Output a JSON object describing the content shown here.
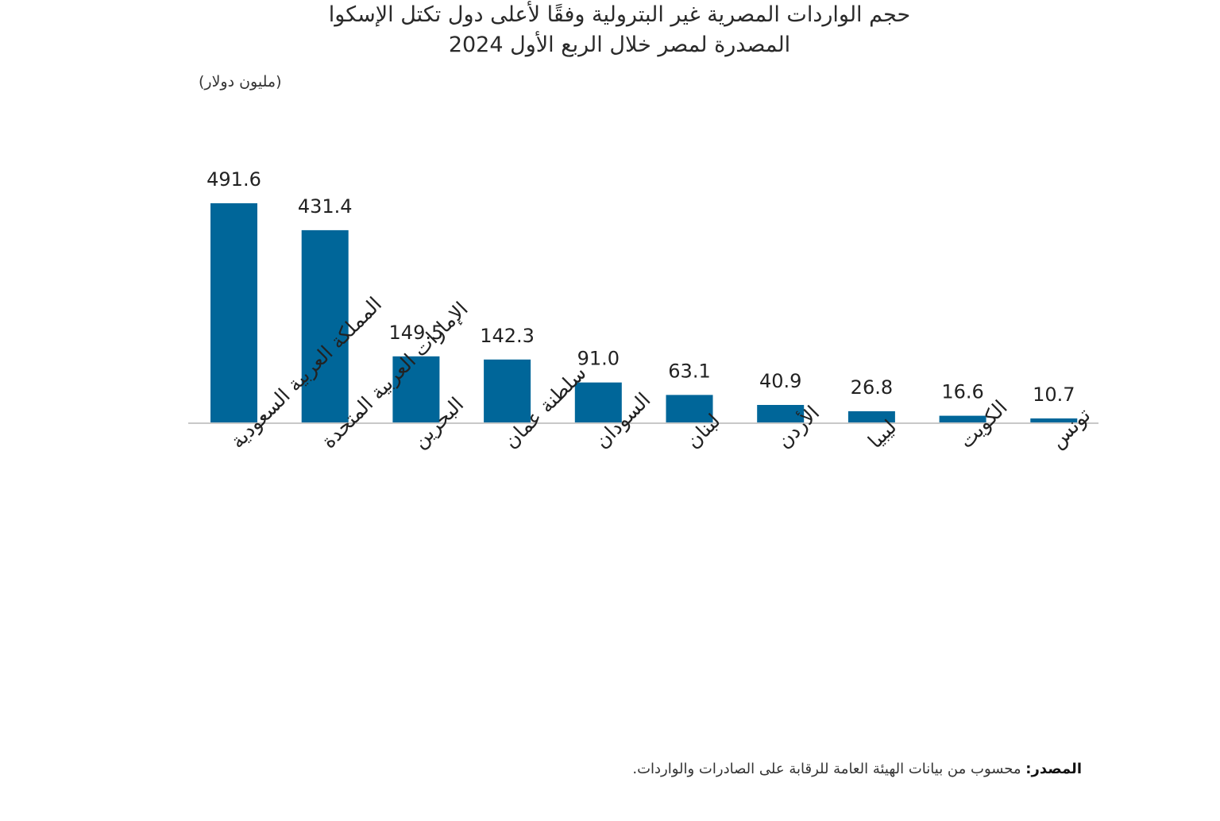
{
  "chart_data": {
    "type": "bar",
    "title_line1": "حجم الواردات المصرية غير البترولية وفقًا لأعلى دول تكتل الإسكوا",
    "title_line2": "المصدرة لمصر خلال الربع الأول 2024",
    "unit_label": "(مليون دولار)",
    "categories": [
      "المملكة العربية السعودية",
      "الإمارات العربية المتحدة",
      "البحرين",
      "سلطنة عمان",
      "السودان",
      "لبنان",
      "الأردن",
      "ليبيا",
      "الكويت",
      "تونس"
    ],
    "values": [
      491.6,
      431.4,
      149.5,
      142.3,
      91.0,
      63.1,
      40.9,
      26.8,
      16.6,
      10.7
    ],
    "value_labels": [
      "491.6",
      "431.4",
      "149.5",
      "142.3",
      "91.0",
      "63.1",
      "40.9",
      "26.8",
      "16.6",
      "10.7"
    ],
    "bar_color": "#006699",
    "ylim": [
      0,
      491.6
    ],
    "grid": false,
    "legend": "none"
  },
  "source": {
    "label": "المصدر:",
    "text": "محسوب من بيانات الهيئة العامة للرقابة على الصادرات والواردات."
  }
}
